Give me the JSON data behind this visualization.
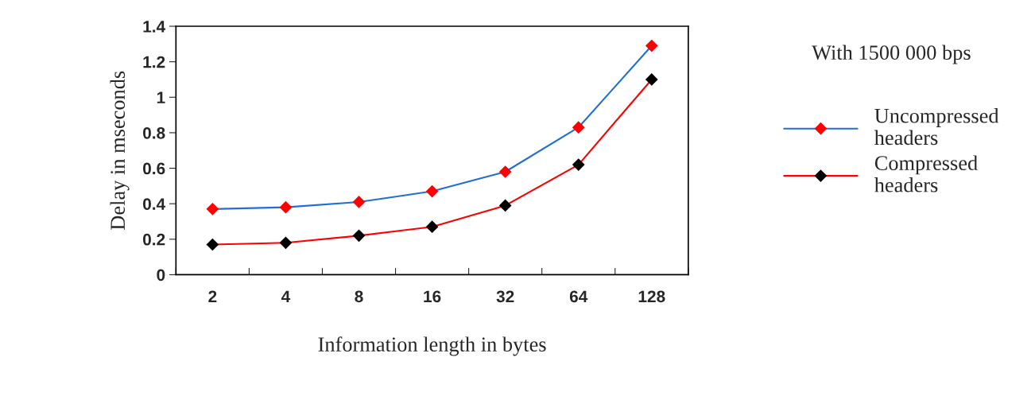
{
  "chart_data": {
    "type": "line",
    "xlabel": "Information length in bytes",
    "ylabel": "Delay in mseconds",
    "legend_title": "With 1500 000 bps",
    "categories": [
      "2",
      "4",
      "8",
      "16",
      "32",
      "64",
      "128"
    ],
    "series": [
      {
        "name": "Uncompressed\nheaders",
        "color": "#1f6fd6",
        "colors": [
          "#ff0000",
          "#ff0000",
          "#ff0000",
          "#ff0000",
          "#ff0000",
          "#ff0000",
          "#ff0000"
        ],
        "values": [
          0.37,
          0.38,
          0.41,
          0.47,
          0.58,
          0.83,
          1.29
        ]
      },
      {
        "name": "Compressed\nheaders",
        "color": "#ff0000",
        "colors": [
          "#000000",
          "#000000",
          "#000000",
          "#000000",
          "#000000",
          "#000000",
          "#000000"
        ],
        "values": [
          0.17,
          0.18,
          0.22,
          0.27,
          0.39,
          0.62,
          1.1
        ]
      }
    ],
    "ylim": [
      0,
      1.4
    ],
    "yticks": [
      0,
      0.2,
      0.4,
      0.6,
      0.8,
      1,
      1.2,
      1.4
    ],
    "marker": "diamond",
    "line_style": "solid",
    "grid": false,
    "legend": "right"
  }
}
